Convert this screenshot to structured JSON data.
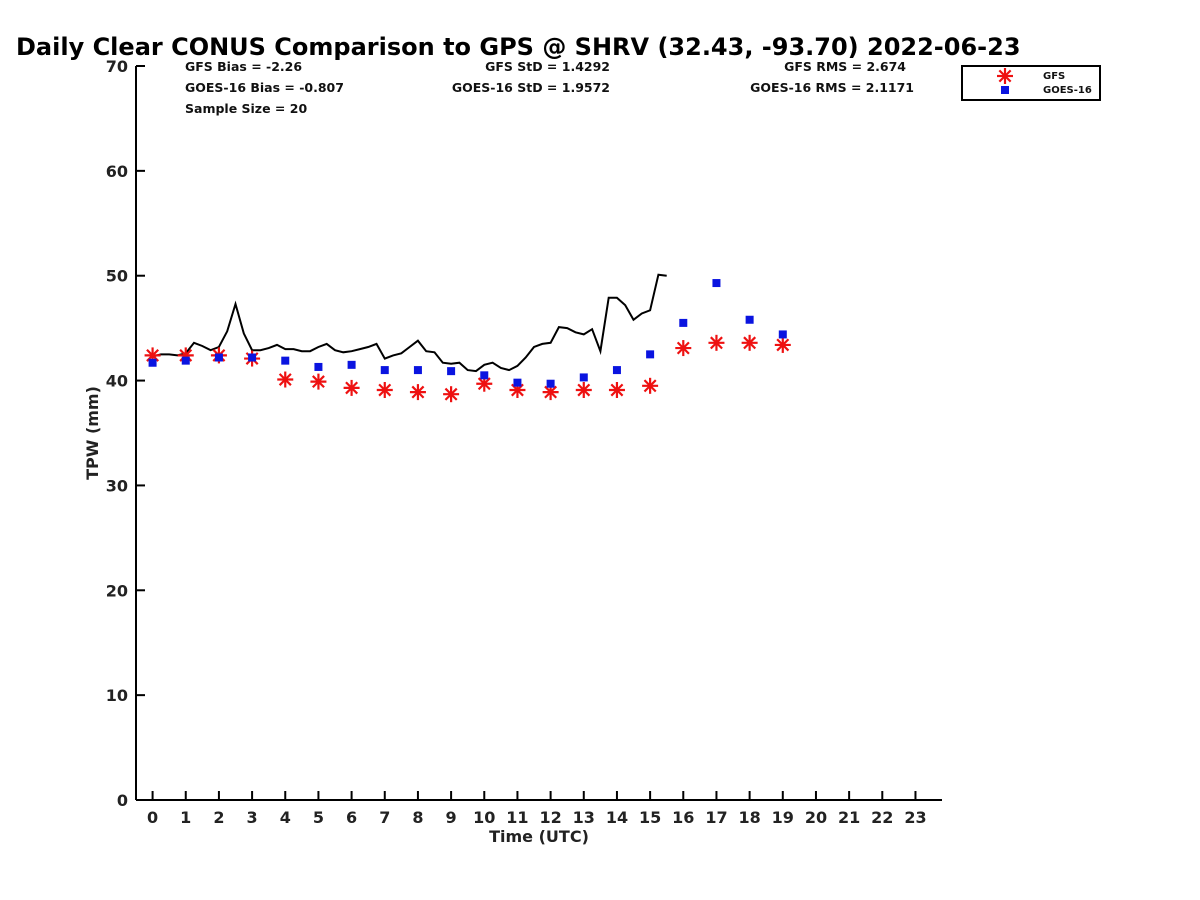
{
  "chart_data": {
    "type": "scatter",
    "title": "Daily Clear CONUS Comparison to GPS @ SHRV (32.43, -93.70) 2022-06-23",
    "xlabel": "Time (UTC)",
    "ylabel": "TPW (mm)",
    "xlim": [
      -0.5,
      23.8
    ],
    "ylim": [
      0,
      70
    ],
    "x_ticks": [
      0,
      1,
      2,
      3,
      4,
      5,
      6,
      7,
      8,
      9,
      10,
      11,
      12,
      13,
      14,
      15,
      16,
      17,
      18,
      19,
      20,
      21,
      22,
      23
    ],
    "y_ticks": [
      0,
      10,
      20,
      30,
      40,
      50,
      60,
      70
    ],
    "grid": false,
    "legend_position": "top-right",
    "stats": {
      "gfs_bias": "GFS Bias = -2.26",
      "goes_bias": "GOES-16 Bias = -0.807",
      "sample_size": "Sample Size = 20",
      "gfs_std": "GFS StD = 1.4292",
      "goes_std": "GOES-16 StD = 1.9572",
      "gfs_rms": "GFS RMS = 2.674",
      "goes_rms": "GOES-16 RMS = 2.1171"
    },
    "series": [
      {
        "name": "GFS",
        "marker": "asterisk",
        "color": "#ee1111",
        "points": [
          [
            0,
            42.4
          ],
          [
            1,
            42.4
          ],
          [
            2,
            42.4
          ],
          [
            3,
            42.1
          ],
          [
            4,
            40.1
          ],
          [
            5,
            39.9
          ],
          [
            6,
            39.3
          ],
          [
            7,
            39.1
          ],
          [
            8,
            38.9
          ],
          [
            9,
            38.7
          ],
          [
            10,
            39.7
          ],
          [
            11,
            39.1
          ],
          [
            12,
            38.9
          ],
          [
            13,
            39.1
          ],
          [
            14,
            39.1
          ],
          [
            15,
            39.5
          ],
          [
            16,
            43.1
          ],
          [
            17,
            43.6
          ],
          [
            18,
            43.6
          ],
          [
            19,
            43.4
          ]
        ]
      },
      {
        "name": "GOES-16",
        "marker": "square",
        "color": "#0a14e0",
        "points": [
          [
            0,
            41.7
          ],
          [
            1,
            41.9
          ],
          [
            2,
            42.2
          ],
          [
            3,
            42.2
          ],
          [
            4,
            41.9
          ],
          [
            5,
            41.3
          ],
          [
            6,
            41.5
          ],
          [
            7,
            41.0
          ],
          [
            8,
            41.0
          ],
          [
            9,
            40.9
          ],
          [
            10,
            40.5
          ],
          [
            11,
            39.8
          ],
          [
            12,
            39.7
          ],
          [
            13,
            40.3
          ],
          [
            14,
            41.0
          ],
          [
            15,
            42.5
          ],
          [
            16,
            45.5
          ],
          [
            17,
            49.3
          ],
          [
            18,
            45.8
          ],
          [
            19,
            44.4
          ]
        ]
      },
      {
        "name": "GPS",
        "marker": "line",
        "color": "#000000",
        "points": [
          [
            0,
            42.3
          ],
          [
            0.25,
            42.5
          ],
          [
            0.5,
            42.5
          ],
          [
            0.75,
            42.4
          ],
          [
            1,
            42.6
          ],
          [
            1.25,
            43.6
          ],
          [
            1.5,
            43.3
          ],
          [
            1.75,
            42.9
          ],
          [
            2,
            43.2
          ],
          [
            2.25,
            44.7
          ],
          [
            2.5,
            47.3
          ],
          [
            2.75,
            44.5
          ],
          [
            3,
            42.9
          ],
          [
            3.25,
            42.9
          ],
          [
            3.5,
            43.1
          ],
          [
            3.75,
            43.4
          ],
          [
            4,
            43.0
          ],
          [
            4.25,
            43.0
          ],
          [
            4.5,
            42.8
          ],
          [
            4.75,
            42.8
          ],
          [
            5,
            43.2
          ],
          [
            5.25,
            43.5
          ],
          [
            5.5,
            42.9
          ],
          [
            5.75,
            42.7
          ],
          [
            6,
            42.8
          ],
          [
            6.25,
            43.0
          ],
          [
            6.5,
            43.2
          ],
          [
            6.75,
            43.5
          ],
          [
            7,
            42.1
          ],
          [
            7.25,
            42.4
          ],
          [
            7.5,
            42.6
          ],
          [
            7.75,
            43.2
          ],
          [
            8,
            43.8
          ],
          [
            8.25,
            42.8
          ],
          [
            8.5,
            42.7
          ],
          [
            8.75,
            41.7
          ],
          [
            9,
            41.6
          ],
          [
            9.25,
            41.7
          ],
          [
            9.5,
            41.0
          ],
          [
            9.75,
            40.9
          ],
          [
            10,
            41.5
          ],
          [
            10.25,
            41.7
          ],
          [
            10.5,
            41.2
          ],
          [
            10.75,
            41.0
          ],
          [
            11,
            41.4
          ],
          [
            11.25,
            42.2
          ],
          [
            11.5,
            43.2
          ],
          [
            11.75,
            43.5
          ],
          [
            12,
            43.6
          ],
          [
            12.25,
            45.1
          ],
          [
            12.5,
            45.0
          ],
          [
            12.75,
            44.6
          ],
          [
            13,
            44.4
          ],
          [
            13.25,
            44.9
          ],
          [
            13.5,
            42.8
          ],
          [
            13.75,
            47.9
          ],
          [
            14,
            47.9
          ],
          [
            14.25,
            47.2
          ],
          [
            14.5,
            45.8
          ],
          [
            14.75,
            46.4
          ],
          [
            15,
            46.7
          ],
          [
            15.25,
            50.1
          ],
          [
            15.5,
            50.0
          ]
        ]
      }
    ]
  }
}
